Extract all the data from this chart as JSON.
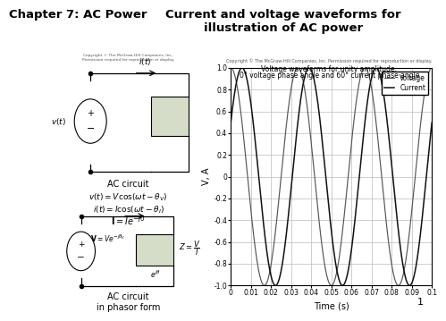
{
  "title_left": "Chapter 7: AC Power",
  "title_right": "Current and voltage waveforms for\nillustration of AC power",
  "plot_title_copyright": "Copyright © The McGraw-Hill Companies, Inc. Permission required for reproduction or display.",
  "plot_title_line2": "Voltage waveforms for unity amplitude,",
  "plot_title_line3": "0° voltage phase angle and 60° current phase angle",
  "xlabel": "Time (s)",
  "ylabel": "V, A",
  "xlim": [
    0,
    0.1
  ],
  "ylim": [
    -1.0,
    1.0
  ],
  "yticks": [
    -1.0,
    -0.8,
    -0.6,
    -0.4,
    -0.2,
    0,
    0.2,
    0.4,
    0.6,
    0.8,
    1.0
  ],
  "xticks": [
    0,
    0.01,
    0.02,
    0.03,
    0.04,
    0.05,
    0.06,
    0.07,
    0.08,
    0.09,
    0.1
  ],
  "xtick_labels": [
    "0",
    "0.01",
    "0.02",
    "0.03",
    "0.04",
    "0.05",
    "0.06",
    "0.07",
    "0.08",
    "0.09",
    "0.1"
  ],
  "frequency": 30,
  "voltage_phase_deg": 0,
  "current_phase_deg": 60,
  "voltage_color": "#555555",
  "current_color": "#111111",
  "grid_color": "#bbbbbb",
  "background_color": "#ffffff",
  "legend_voltage": "Voltage",
  "legend_current": "Current",
  "page_number": "1",
  "circuit_copyright": "Copyright © The McGraw-Hill Companies, Inc.\nPermission required for reproduction or display."
}
